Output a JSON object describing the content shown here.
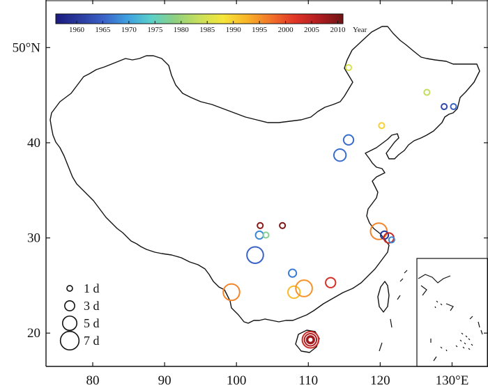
{
  "chart_data": {
    "type": "scatter",
    "xlim": [
      73.5,
      135
    ],
    "ylim": [
      16.5,
      55
    ],
    "x_ticks": [
      {
        "value": 80,
        "label": "80"
      },
      {
        "value": 90,
        "label": "90"
      },
      {
        "value": 100,
        "label": "100"
      },
      {
        "value": 110,
        "label": "110"
      },
      {
        "value": 120,
        "label": "120"
      },
      {
        "value": 130,
        "label": "130°E"
      }
    ],
    "y_ticks": [
      {
        "value": 20,
        "label": "20"
      },
      {
        "value": 30,
        "label": "30"
      },
      {
        "value": 40,
        "label": "40"
      },
      {
        "value": 50,
        "label": "50°N"
      }
    ],
    "colorbar": {
      "unit_label": "Year",
      "min": 1956,
      "max": 2011,
      "ticks": [
        1960,
        1965,
        1970,
        1975,
        1980,
        1985,
        1990,
        1995,
        2000,
        2005,
        2010
      ],
      "colors": [
        "#1a1a7e",
        "#2b3b9e",
        "#3a62c8",
        "#3fa0e0",
        "#5ad0c8",
        "#8fd080",
        "#c8e05a",
        "#f6e63a",
        "#f9b327",
        "#f2722a",
        "#e03427",
        "#b01c20",
        "#6e1414"
      ]
    },
    "size_legend": [
      {
        "days": 1,
        "label": "1 d"
      },
      {
        "days": 3,
        "label": "3 d"
      },
      {
        "days": 5,
        "label": "5 d"
      },
      {
        "days": 7,
        "label": "7 d"
      }
    ],
    "points": [
      {
        "lon": 115.6,
        "lat": 47.9,
        "year": 1985,
        "days": 1
      },
      {
        "lon": 126.5,
        "lat": 45.3,
        "year": 1983,
        "days": 1
      },
      {
        "lon": 128.9,
        "lat": 43.8,
        "year": 1962,
        "days": 1
      },
      {
        "lon": 130.2,
        "lat": 43.8,
        "year": 1965,
        "days": 1
      },
      {
        "lon": 120.2,
        "lat": 41.8,
        "year": 1990,
        "days": 1
      },
      {
        "lon": 115.6,
        "lat": 40.3,
        "year": 1966,
        "days": 3
      },
      {
        "lon": 114.4,
        "lat": 38.7,
        "year": 1966,
        "days": 4
      },
      {
        "lon": 103.3,
        "lat": 31.3,
        "year": 2009,
        "days": 1
      },
      {
        "lon": 106.4,
        "lat": 31.3,
        "year": 2010,
        "days": 1
      },
      {
        "lon": 103.2,
        "lat": 30.3,
        "year": 1968,
        "days": 2
      },
      {
        "lon": 104.1,
        "lat": 30.3,
        "year": 1978,
        "days": 1
      },
      {
        "lon": 102.6,
        "lat": 28.2,
        "year": 1965,
        "days": 6
      },
      {
        "lon": 119.8,
        "lat": 30.7,
        "year": 1996,
        "days": 6
      },
      {
        "lon": 120.6,
        "lat": 30.3,
        "year": 1960,
        "days": 2
      },
      {
        "lon": 121.2,
        "lat": 30.0,
        "year": 2004,
        "days": 3
      },
      {
        "lon": 121.6,
        "lat": 29.8,
        "year": 1968,
        "days": 1
      },
      {
        "lon": 107.8,
        "lat": 26.3,
        "year": 1967,
        "days": 2
      },
      {
        "lon": 113.1,
        "lat": 25.3,
        "year": 2003,
        "days": 3
      },
      {
        "lon": 99.3,
        "lat": 24.3,
        "year": 1996,
        "days": 6
      },
      {
        "lon": 108.0,
        "lat": 24.3,
        "year": 1992,
        "days": 4
      },
      {
        "lon": 109.4,
        "lat": 24.7,
        "year": 1995,
        "days": 6
      },
      {
        "lon": 110.3,
        "lat": 19.3,
        "year": 2004,
        "days": 6
      },
      {
        "lon": 110.3,
        "lat": 19.3,
        "year": 2006,
        "days": 4
      },
      {
        "lon": 110.3,
        "lat": 19.3,
        "year": 2007,
        "days": 2
      },
      {
        "lon": 110.3,
        "lat": 19.3,
        "year": 2008,
        "days": 1
      }
    ]
  }
}
